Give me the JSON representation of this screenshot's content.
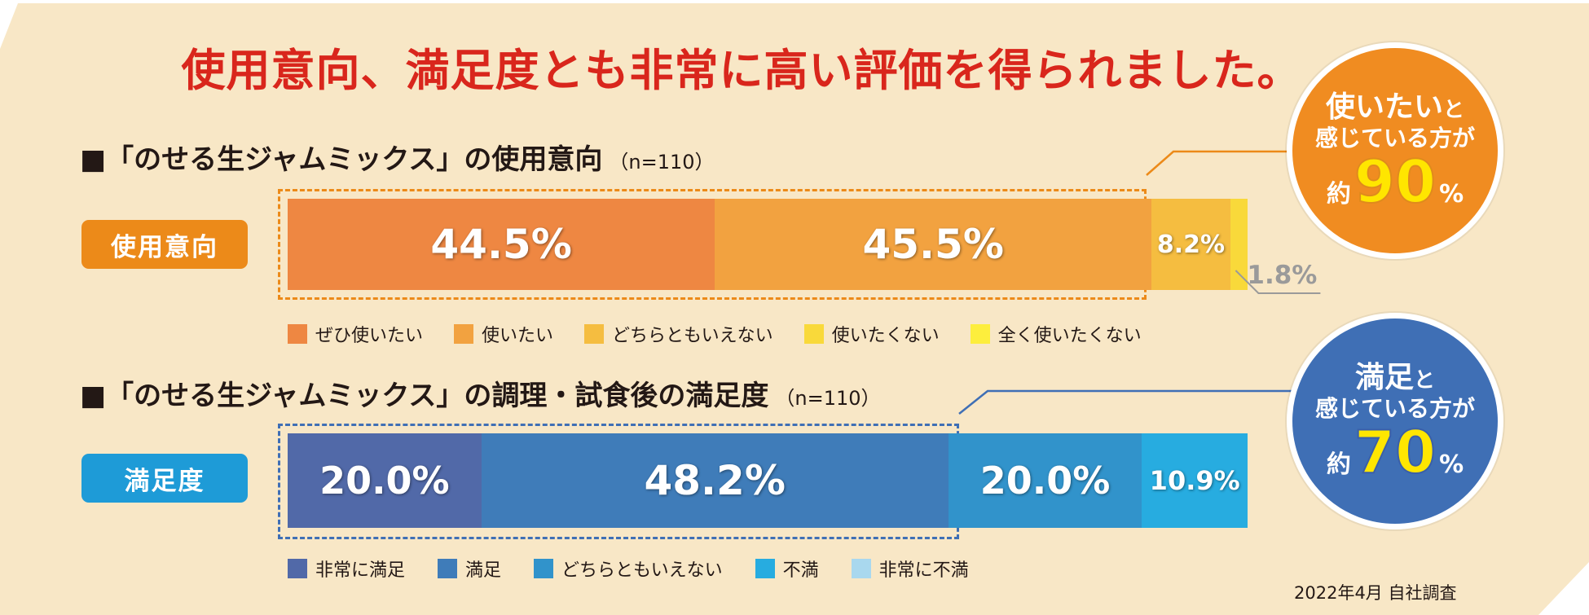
{
  "headline": "使用意向、満足度とも非常に高い評価を得られました。",
  "colors": {
    "background": "#f8e7c6",
    "headline": "#d9261c",
    "usage_pill": "#ec8a19",
    "satisfaction_pill": "#1e9bd7",
    "usage_circle": "#f08c21",
    "satisfaction_circle": "#3f6fb5",
    "highlight_number": "#ffe600"
  },
  "sections": {
    "usage": {
      "title": "■「のせる生ジャムミックス」の使用意向",
      "n_label": "（n=110）",
      "pill": "使用意向"
    },
    "satisfaction": {
      "title": "■「のせる生ジャムミックス」の調理・試食後の満足度",
      "n_label": "（n=110）",
      "pill": "満足度"
    }
  },
  "callouts": {
    "usage": {
      "line1_big": "使いたい",
      "line1_small": "と",
      "line2": "感じている方が",
      "approx": "約",
      "number": "90",
      "pct": "%"
    },
    "satisfaction": {
      "line1_big": "満足",
      "line1_small": "と",
      "line2": "感じている方が",
      "approx": "約",
      "number": "70",
      "pct": "%"
    }
  },
  "footer": "2022年4月 自社調査",
  "chart_data": [
    {
      "type": "bar",
      "orientation": "horizontal-stacked",
      "category": "使用意向",
      "unit": "%",
      "series": [
        {
          "name": "ぜひ使いたい",
          "value": 44.5,
          "label": "44.5%",
          "color": "#ee8742"
        },
        {
          "name": "使いたい",
          "value": 45.5,
          "label": "45.5%",
          "color": "#f2a240"
        },
        {
          "name": "どちらともいえない",
          "value": 8.2,
          "label": "8.2%",
          "color": "#f5bd40"
        },
        {
          "name": "使いたくない",
          "value": 1.8,
          "label": "1.8%",
          "color": "#f9d93a"
        },
        {
          "name": "全く使いたくない",
          "value": 0,
          "label": "",
          "color": "#fdee3d"
        }
      ]
    },
    {
      "type": "bar",
      "orientation": "horizontal-stacked",
      "category": "満足度",
      "unit": "%",
      "series": [
        {
          "name": "非常に満足",
          "value": 20.0,
          "label": "20.0%",
          "color": "#5169a8"
        },
        {
          "name": "満足",
          "value": 48.2,
          "label": "48.2%",
          "color": "#3f7cb9"
        },
        {
          "name": "どちらともいえない",
          "value": 20.0,
          "label": "20.0%",
          "color": "#3193cb"
        },
        {
          "name": "不満",
          "value": 10.9,
          "label": "10.9%",
          "color": "#27ace0"
        },
        {
          "name": "非常に不満",
          "value": 0,
          "label": "",
          "color": "#a9d8ee"
        }
      ]
    }
  ]
}
